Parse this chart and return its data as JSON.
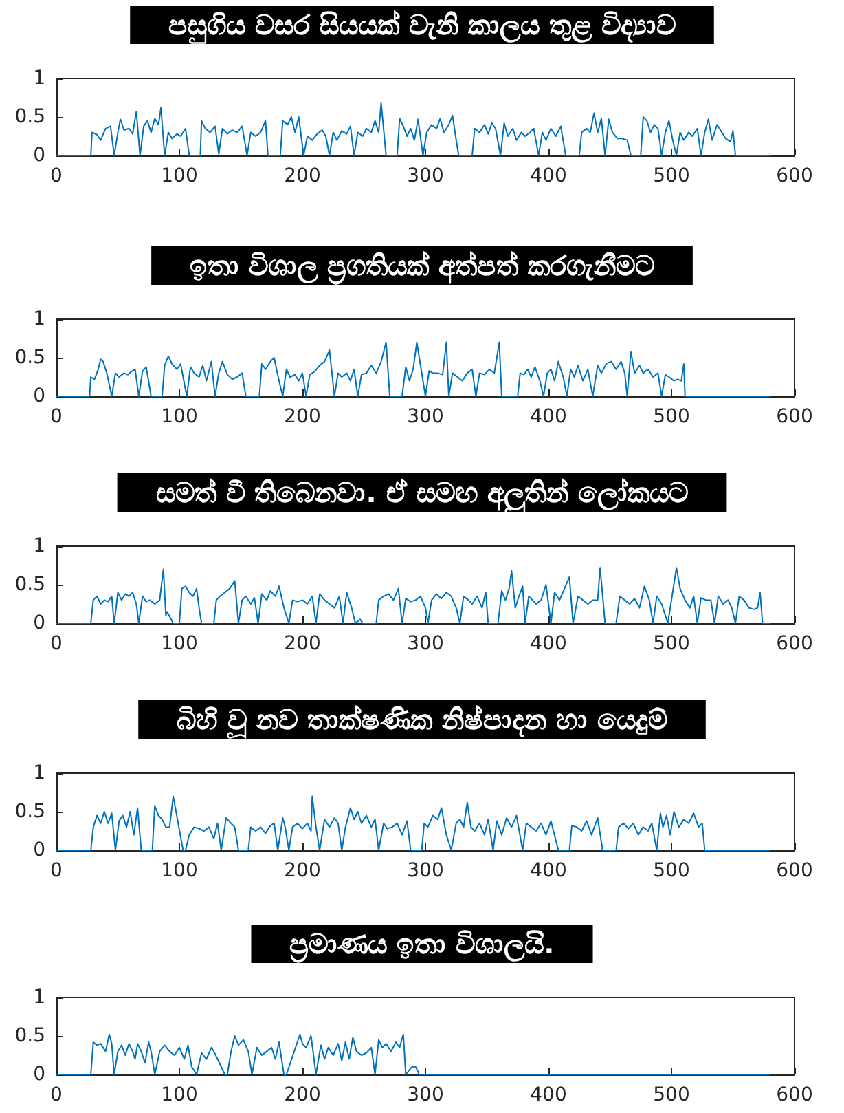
{
  "chart_data": [
    {
      "type": "line",
      "title": "පසුගිය වසර සියයක් වැනි කාලය තුළ විද්‍යාව",
      "color": "#0072bd",
      "xlim": [
        0,
        600
      ],
      "xticks": [
        0,
        100,
        200,
        300,
        400,
        500,
        600
      ],
      "ylim": [
        0,
        1
      ],
      "yticks": [
        0,
        0.5,
        1
      ],
      "x": [
        0,
        28,
        29,
        33,
        36,
        40,
        44,
        47,
        50,
        52,
        55,
        59,
        62,
        65,
        68,
        71,
        74,
        77,
        80,
        83,
        85,
        88,
        91,
        94,
        98,
        101,
        105,
        108,
        117,
        118,
        121,
        125,
        129,
        132,
        135,
        139,
        143,
        147,
        151,
        155,
        158,
        162,
        166,
        170,
        172,
        182,
        184,
        188,
        191,
        194,
        197,
        201,
        204,
        208,
        212,
        216,
        219,
        222,
        225,
        228,
        232,
        236,
        239,
        242,
        245,
        249,
        252,
        256,
        259,
        262,
        264,
        268,
        277,
        279,
        282,
        285,
        288,
        291,
        294,
        298,
        301,
        305,
        309,
        312,
        315,
        319,
        322,
        325,
        327,
        338,
        340,
        344,
        348,
        351,
        354,
        357,
        361,
        364,
        367,
        371,
        374,
        378,
        381,
        385,
        388,
        392,
        395,
        398,
        402,
        406,
        410,
        414,
        425,
        427,
        431,
        434,
        437,
        440,
        443,
        446,
        449,
        452,
        456,
        460,
        464,
        467,
        475,
        477,
        480,
        483,
        486,
        489,
        492,
        495,
        498,
        501,
        504,
        507,
        510,
        514,
        517,
        521,
        524,
        527,
        530,
        533,
        537,
        541,
        544,
        548,
        550,
        552,
        580
      ],
      "values": [
        0,
        0,
        0.3,
        0.27,
        0.2,
        0.35,
        0.38,
        0,
        0.3,
        0.47,
        0.33,
        0.35,
        0.28,
        0.57,
        0,
        0.38,
        0.45,
        0.3,
        0.48,
        0.4,
        0.62,
        0,
        0.3,
        0.22,
        0.28,
        0.25,
        0.35,
        0,
        0,
        0.45,
        0.35,
        0.3,
        0.38,
        0.02,
        0.35,
        0.28,
        0.33,
        0.3,
        0.38,
        0,
        0.3,
        0.25,
        0.3,
        0.45,
        0,
        0,
        0.45,
        0.4,
        0.5,
        0.3,
        0.5,
        0,
        0.25,
        0.2,
        0.28,
        0.33,
        0.25,
        0,
        0.3,
        0.2,
        0.32,
        0.28,
        0.38,
        0,
        0.3,
        0.25,
        0.35,
        0.3,
        0.45,
        0.3,
        0.68,
        0,
        0,
        0.48,
        0.38,
        0.25,
        0.35,
        0.2,
        0.47,
        0,
        0.3,
        0.4,
        0.35,
        0.48,
        0.3,
        0.4,
        0.52,
        0.2,
        0,
        0,
        0.35,
        0.3,
        0.4,
        0.28,
        0.42,
        0.35,
        0,
        0.42,
        0.25,
        0.35,
        0.2,
        0.3,
        0.25,
        0.3,
        0.35,
        0,
        0.3,
        0.2,
        0.35,
        0.25,
        0.38,
        0,
        0,
        0.3,
        0.35,
        0.3,
        0.55,
        0.3,
        0.48,
        0,
        0.47,
        0.3,
        0.22,
        0.22,
        0.2,
        0,
        0,
        0.5,
        0.45,
        0.3,
        0.4,
        0.35,
        0,
        0.3,
        0.45,
        0.2,
        0,
        0.3,
        0.2,
        0.3,
        0.25,
        0.35,
        0,
        0.3,
        0.47,
        0.2,
        0.4,
        0.3,
        0.22,
        0.18,
        0.32,
        0,
        0
      ]
    },
    {
      "type": "line",
      "title": "ඉතා විශාල ප්‍රගතියක් අත්පත් කරගැනීමට",
      "color": "#0072bd",
      "xlim": [
        0,
        600
      ],
      "xticks": [
        0,
        100,
        200,
        300,
        400,
        500,
        600
      ],
      "ylim": [
        0,
        1
      ],
      "yticks": [
        0,
        0.5,
        1
      ],
      "x": [
        0,
        27,
        28,
        31,
        34,
        36,
        38,
        41,
        45,
        48,
        51,
        55,
        58,
        61,
        64,
        67,
        70,
        73,
        77,
        86,
        88,
        91,
        94,
        98,
        101,
        106,
        109,
        112,
        116,
        119,
        122,
        126,
        129,
        132,
        135,
        139,
        143,
        147,
        151,
        154,
        165,
        167,
        170,
        174,
        177,
        181,
        184,
        187,
        190,
        194,
        197,
        200,
        203,
        206,
        210,
        214,
        218,
        222,
        226,
        229,
        232,
        236,
        239,
        242,
        245,
        248,
        252,
        256,
        260,
        264,
        268,
        271,
        281,
        284,
        287,
        290,
        293,
        297,
        300,
        303,
        306,
        310,
        314,
        317,
        319,
        322,
        326,
        330,
        334,
        338,
        341,
        344,
        348,
        352,
        356,
        360,
        362,
        375,
        377,
        380,
        383,
        386,
        389,
        393,
        396,
        399,
        402,
        405,
        408,
        412,
        415,
        418,
        421,
        424,
        428,
        432,
        436,
        440,
        443,
        447,
        451,
        455,
        459,
        462,
        464,
        467,
        470,
        474,
        477,
        481,
        485,
        489,
        492,
        495,
        498,
        502,
        505,
        508,
        510,
        511,
        580
      ],
      "values": [
        0,
        0,
        0.25,
        0.22,
        0.35,
        0.48,
        0.45,
        0.3,
        0,
        0.3,
        0.25,
        0.3,
        0.28,
        0.32,
        0.35,
        0,
        0.32,
        0.38,
        0,
        0,
        0.4,
        0.52,
        0.42,
        0.35,
        0.42,
        0,
        0.38,
        0.3,
        0.25,
        0.4,
        0.2,
        0.45,
        0,
        0.3,
        0.45,
        0.28,
        0.22,
        0.25,
        0.3,
        0,
        0,
        0.42,
        0.35,
        0.45,
        0.5,
        0.2,
        0,
        0.35,
        0.25,
        0.28,
        0.2,
        0.3,
        0,
        0.28,
        0.32,
        0.4,
        0.45,
        0.6,
        0,
        0.3,
        0.25,
        0.3,
        0.2,
        0.35,
        0,
        0.28,
        0.3,
        0.4,
        0.3,
        0.45,
        0.7,
        0,
        0,
        0.38,
        0.2,
        0.35,
        0.7,
        0.3,
        0,
        0.33,
        0.3,
        0.3,
        0.28,
        0.7,
        0,
        0.3,
        0.25,
        0.2,
        0.3,
        0.35,
        0,
        0.3,
        0.28,
        0.35,
        0.3,
        0.7,
        0,
        0,
        0.3,
        0.28,
        0.35,
        0.25,
        0.38,
        0.2,
        0,
        0.3,
        0.35,
        0.2,
        0.45,
        0.25,
        0,
        0.35,
        0.25,
        0.4,
        0.2,
        0.35,
        0,
        0.4,
        0.3,
        0.42,
        0.45,
        0.35,
        0.45,
        0.3,
        0,
        0.58,
        0.3,
        0.4,
        0.3,
        0.35,
        0.25,
        0.3,
        0,
        0.28,
        0.25,
        0.2,
        0.22,
        0.2,
        0.42,
        0,
        0
      ]
    },
    {
      "type": "line",
      "title": "සමත් වී තිබෙනවා. ඒ සමඟ අලුතින් ලෝකයට",
      "color": "#0072bd",
      "xlim": [
        0,
        600
      ],
      "xticks": [
        0,
        100,
        200,
        300,
        400,
        500,
        600
      ],
      "ylim": [
        0,
        1
      ],
      "yticks": [
        0,
        0.5,
        1
      ],
      "x": [
        0,
        28,
        30,
        33,
        36,
        39,
        42,
        45,
        47,
        50,
        53,
        56,
        59,
        62,
        65,
        67,
        70,
        73,
        76,
        80,
        84,
        87,
        89,
        90,
        95,
        100,
        102,
        105,
        108,
        111,
        114,
        116,
        118,
        128,
        130,
        133,
        137,
        141,
        145,
        148,
        151,
        154,
        158,
        161,
        164,
        167,
        171,
        174,
        178,
        181,
        185,
        189,
        192,
        196,
        200,
        204,
        208,
        211,
        214,
        218,
        222,
        226,
        230,
        233,
        236,
        240,
        243,
        247,
        249,
        260,
        262,
        266,
        270,
        274,
        278,
        281,
        284,
        288,
        292,
        296,
        300,
        302,
        305,
        309,
        313,
        317,
        321,
        325,
        328,
        331,
        335,
        338,
        342,
        346,
        349,
        351,
        359,
        362,
        365,
        368,
        370,
        373,
        376,
        379,
        381,
        384,
        387,
        390,
        394,
        398,
        402,
        405,
        409,
        413,
        417,
        420,
        424,
        428,
        432,
        436,
        440,
        442,
        446,
        455,
        458,
        462,
        466,
        470,
        474,
        478,
        482,
        485,
        488,
        492,
        497,
        500,
        504,
        507,
        511,
        515,
        518,
        521,
        524,
        528,
        532,
        535,
        538,
        542,
        546,
        549,
        552,
        555,
        559,
        563,
        567,
        570,
        572,
        574,
        580
      ],
      "values": [
        0,
        0,
        0.3,
        0.35,
        0.25,
        0.3,
        0.28,
        0.35,
        0,
        0.4,
        0.3,
        0.38,
        0.35,
        0.4,
        0.25,
        0,
        0.35,
        0.28,
        0.3,
        0.25,
        0.3,
        0.7,
        0.1,
        0.15,
        0,
        0,
        0.45,
        0.48,
        0.4,
        0.35,
        0.45,
        0.2,
        0,
        0,
        0.3,
        0.35,
        0.4,
        0.45,
        0.55,
        0,
        0.3,
        0.35,
        0.25,
        0.33,
        0,
        0.38,
        0.3,
        0.42,
        0.35,
        0.48,
        0.2,
        0,
        0.3,
        0.28,
        0.3,
        0.25,
        0.35,
        0,
        0.38,
        0.3,
        0.25,
        0.2,
        0.35,
        0,
        0.4,
        0.2,
        0,
        0.05,
        0,
        0,
        0.3,
        0.35,
        0.38,
        0.3,
        0.45,
        0,
        0.32,
        0.28,
        0.3,
        0.35,
        0.2,
        0,
        0.3,
        0.38,
        0.32,
        0.4,
        0.35,
        0.2,
        0,
        0.35,
        0.3,
        0.25,
        0.35,
        0.2,
        0.4,
        0,
        0,
        0.42,
        0.3,
        0.45,
        0.68,
        0.2,
        0.35,
        0.48,
        0,
        0.35,
        0.3,
        0.25,
        0.3,
        0.5,
        0,
        0.4,
        0.3,
        0.45,
        0.6,
        0,
        0.35,
        0.3,
        0.25,
        0.3,
        0.3,
        0.72,
        0,
        0,
        0.35,
        0.3,
        0.25,
        0.32,
        0.2,
        0.48,
        0.3,
        0,
        0.35,
        0.25,
        0,
        0.3,
        0.72,
        0.45,
        0.3,
        0.2,
        0.35,
        0,
        0.33,
        0.3,
        0.3,
        0,
        0.35,
        0.25,
        0.3,
        0.2,
        0,
        0.35,
        0.3,
        0.2,
        0.18,
        0.2,
        0.4,
        0,
        0
      ]
    },
    {
      "type": "line",
      "title": "බිහි වූ නව තාක්ෂණික නිෂ්පාදන හා යෙදුම්",
      "color": "#0072bd",
      "xlim": [
        0,
        600
      ],
      "xticks": [
        0,
        100,
        200,
        300,
        400,
        500,
        600
      ],
      "ylim": [
        0,
        1
      ],
      "yticks": [
        0,
        0.5,
        1
      ],
      "x": [
        0,
        28,
        30,
        33,
        36,
        39,
        42,
        45,
        48,
        51,
        54,
        57,
        60,
        63,
        66,
        69,
        78,
        80,
        83,
        86,
        89,
        92,
        95,
        103,
        105,
        108,
        112,
        116,
        120,
        124,
        128,
        131,
        134,
        138,
        142,
        145,
        148,
        156,
        158,
        162,
        166,
        170,
        174,
        177,
        180,
        184,
        186,
        189,
        192,
        196,
        200,
        204,
        207,
        208,
        211,
        214,
        218,
        222,
        226,
        229,
        232,
        235,
        239,
        242,
        245,
        248,
        252,
        256,
        259,
        262,
        266,
        269,
        273,
        277,
        281,
        285,
        288,
        297,
        299,
        302,
        306,
        310,
        313,
        317,
        321,
        325,
        328,
        331,
        334,
        337,
        340,
        344,
        348,
        351,
        355,
        358,
        362,
        366,
        370,
        374,
        379,
        382,
        386,
        390,
        394,
        398,
        402,
        408,
        417,
        419,
        423,
        427,
        431,
        435,
        440,
        444,
        455,
        457,
        461,
        465,
        469,
        473,
        477,
        481,
        484,
        488,
        491,
        493,
        496,
        499,
        502,
        506,
        510,
        514,
        518,
        522,
        525,
        527,
        580
      ],
      "values": [
        0,
        0,
        0.3,
        0.45,
        0.35,
        0.5,
        0.35,
        0.48,
        0,
        0.38,
        0.45,
        0.3,
        0.5,
        0.2,
        0.55,
        0,
        0,
        0.58,
        0.45,
        0.4,
        0.3,
        0.3,
        0.7,
        0,
        0,
        0.2,
        0.3,
        0.28,
        0.25,
        0.3,
        0.15,
        0.35,
        0,
        0.42,
        0.35,
        0.3,
        0,
        0,
        0.3,
        0.25,
        0.3,
        0.22,
        0.32,
        0.35,
        0,
        0.42,
        0.3,
        0,
        0.3,
        0.35,
        0.28,
        0.35,
        0.25,
        0.7,
        0.3,
        0,
        0.4,
        0.3,
        0.42,
        0.35,
        0,
        0.3,
        0.55,
        0.4,
        0.5,
        0.35,
        0.45,
        0.3,
        0.4,
        0,
        0.35,
        0.28,
        0.3,
        0.35,
        0.2,
        0.38,
        0,
        0,
        0.35,
        0.3,
        0.45,
        0.4,
        0.55,
        0.2,
        0,
        0.35,
        0.4,
        0.3,
        0.62,
        0.3,
        0.25,
        0.35,
        0.2,
        0.4,
        0,
        0.38,
        0.2,
        0.42,
        0.3,
        0.45,
        0,
        0.35,
        0.3,
        0.25,
        0.35,
        0.2,
        0.38,
        0,
        0,
        0.32,
        0.3,
        0.25,
        0.38,
        0.2,
        0.42,
        0,
        0,
        0.3,
        0.35,
        0.28,
        0.35,
        0.2,
        0.3,
        0.25,
        0.35,
        0,
        0.48,
        0.3,
        0.45,
        0.2,
        0.5,
        0.3,
        0.4,
        0.35,
        0.48,
        0.3,
        0.35,
        0,
        0
      ]
    },
    {
      "type": "line",
      "title": "ප්‍රමාණය ඉතා විශාලයි.",
      "color": "#0072bd",
      "xlim": [
        0,
        600
      ],
      "xticks": [
        0,
        100,
        200,
        300,
        400,
        500,
        600
      ],
      "ylim": [
        0,
        1
      ],
      "yticks": [
        0,
        0.5,
        1
      ],
      "x": [
        0,
        28,
        30,
        33,
        36,
        40,
        43,
        45,
        47,
        50,
        53,
        56,
        59,
        62,
        64,
        66,
        69,
        72,
        75,
        77,
        80,
        84,
        88,
        92,
        96,
        100,
        104,
        107,
        110,
        114,
        118,
        122,
        126,
        128,
        137,
        139,
        142,
        145,
        148,
        152,
        156,
        159,
        163,
        167,
        171,
        175,
        178,
        181,
        185,
        187,
        198,
        200,
        203,
        207,
        211,
        215,
        218,
        221,
        225,
        229,
        232,
        235,
        238,
        241,
        244,
        248,
        252,
        256,
        259,
        262,
        265,
        268,
        272,
        276,
        279,
        282,
        284,
        289,
        292,
        295,
        580
      ],
      "values": [
        0,
        0,
        0.42,
        0.38,
        0.4,
        0.3,
        0.52,
        0.4,
        0,
        0.3,
        0.38,
        0.25,
        0.4,
        0.3,
        0.2,
        0.4,
        0.3,
        0.15,
        0.42,
        0.3,
        0,
        0.3,
        0.38,
        0.3,
        0.25,
        0.35,
        0.2,
        0.38,
        0.1,
        0,
        0.28,
        0.2,
        0.35,
        0.3,
        0,
        0,
        0.3,
        0.5,
        0.38,
        0.45,
        0.3,
        0,
        0.35,
        0.25,
        0.3,
        0.35,
        0.2,
        0.42,
        0,
        0,
        0.52,
        0.4,
        0.35,
        0.5,
        0,
        0.38,
        0.2,
        0.35,
        0.25,
        0.4,
        0.18,
        0.42,
        0.2,
        0.48,
        0.3,
        0.25,
        0.28,
        0.35,
        0,
        0.45,
        0.35,
        0.4,
        0.3,
        0.42,
        0.35,
        0.52,
        0,
        0.1,
        0.1,
        0,
        0
      ]
    }
  ]
}
